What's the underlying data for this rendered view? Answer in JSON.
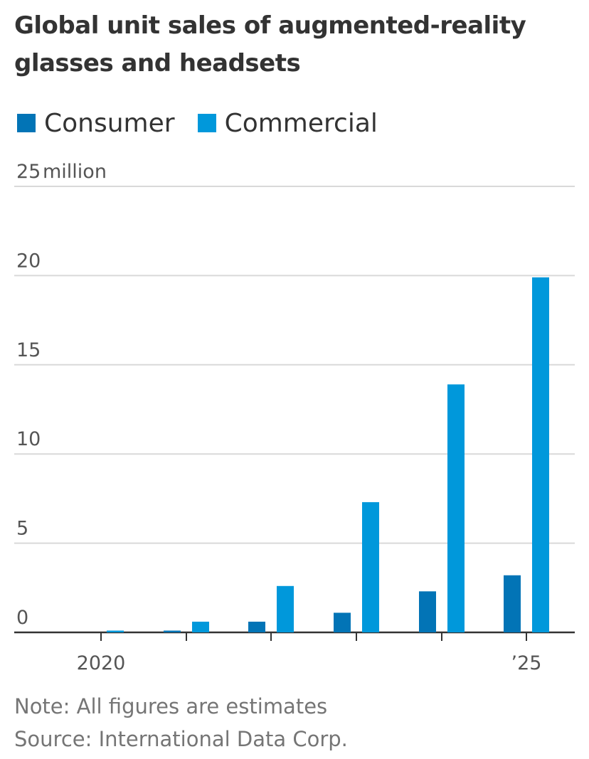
{
  "chart_data": {
    "type": "bar",
    "title": "Global unit sales of augmented-reality glasses and headsets",
    "categories": [
      "2020",
      "2021",
      "2022",
      "2023",
      "2024",
      "2025"
    ],
    "x_tick_labels": [
      "2020",
      "",
      "",
      "",
      "",
      "’25"
    ],
    "series": [
      {
        "name": "Consumer",
        "color": "#0274b6",
        "values": [
          0.0,
          0.1,
          0.6,
          1.1,
          2.3,
          3.2
        ]
      },
      {
        "name": "Commercial",
        "color": "#0098db",
        "values": [
          0.1,
          0.6,
          2.6,
          7.3,
          13.9,
          19.9
        ]
      }
    ],
    "y_ticks": [
      {
        "value": 0,
        "label": "0"
      },
      {
        "value": 5,
        "label": "5"
      },
      {
        "value": 10,
        "label": "10"
      },
      {
        "value": 15,
        "label": "15"
      },
      {
        "value": 20,
        "label": "20"
      },
      {
        "value": 25,
        "label": "25"
      }
    ],
    "y_top_unit": "million",
    "ylim": [
      0,
      25
    ],
    "xlabel": "",
    "ylabel": "",
    "grid": true,
    "legend_position": "top-left"
  },
  "notes": {
    "note": "Note: All figures are estimates",
    "source": "Source: International Data Corp."
  }
}
